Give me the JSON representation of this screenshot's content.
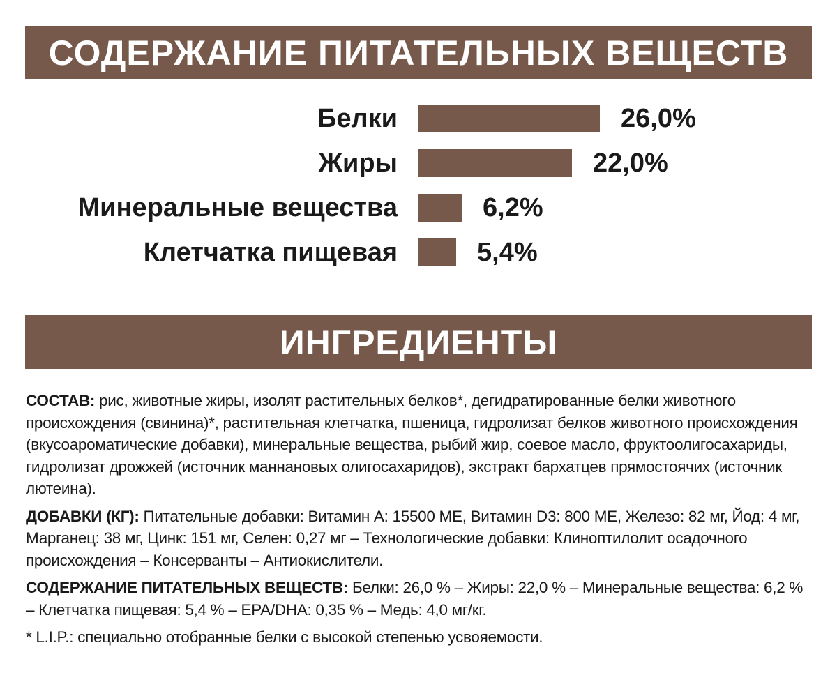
{
  "headers": {
    "nutrients": "СОДЕРЖАНИЕ ПИТАТЕЛЬНЫХ ВЕЩЕСТВ",
    "ingredients": "ИНГРЕДИЕНТЫ"
  },
  "colors": {
    "brand_brown": "#76594a",
    "text": "#1a1a1a",
    "background": "#ffffff"
  },
  "chart_data": {
    "type": "bar",
    "orientation": "horizontal",
    "title": "СОДЕРЖАНИЕ ПИТАТЕЛЬНЫХ ВЕЩЕСТВ",
    "categories": [
      "Белки",
      "Жиры",
      "Минеральные вещества",
      "Клетчатка пищевая"
    ],
    "values": [
      26.0,
      22.0,
      6.2,
      5.4
    ],
    "value_labels": [
      "26,0%",
      "22,0%",
      "6,2%",
      "5,4%"
    ],
    "unit": "%",
    "grid": false,
    "legend": "none"
  },
  "ingredients": {
    "composition": {
      "label": "СОСТАВ:",
      "text": " рис, животные жиры, изолят растительных белков*, дегидратированные белки животного происхождения (свинина)*, растительная клетчатка, пшеница, гидролизат белков животного происхождения (вкусоароматические добавки), минеральные вещества, рыбий жир, соевое масло, фруктоолигосахариды, гидролизат дрожжей (источник маннановых олигосахаридов), экстракт бархатцев прямостоячих (источник лютеина)."
    },
    "additives": {
      "label": "ДОБАВКИ (КГ):",
      "text": " Питательные добавки: Витамин А: 15500 МЕ, Витамин D3: 800 МЕ, Железо: 82 мг, Йод: 4 мг, Марганец: 38 мг, Цинк: 151 мг, Селен: 0,27 мг – Технологические добавки: Клиноптилолит осадочного происхождения – Консерванты – Антиокислители."
    },
    "nutrients": {
      "label": "СОДЕРЖАНИЕ ПИТАТЕЛЬНЫХ ВЕЩЕСТВ:",
      "text": " Белки: 26,0 % – Жиры: 22,0 % – Минеральные вещества: 6,2 % – Клетчатка пищевая: 5,4 % – EPA/DHA: 0,35 % – Медь: 4,0 мг/кг."
    },
    "footnote": "* L.I.P.: специально отобранные белки с высокой степенью усвояемости."
  }
}
